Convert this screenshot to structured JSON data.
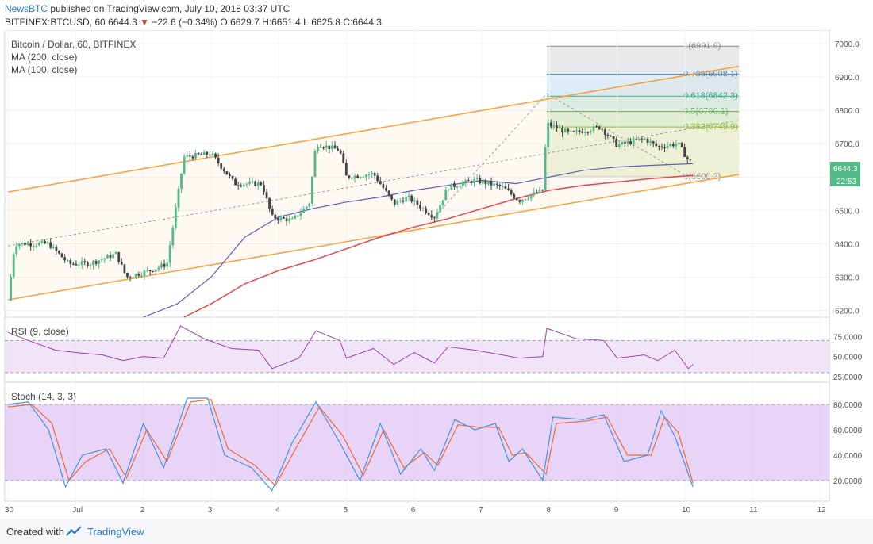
{
  "header": {
    "brand": "NewsBTC",
    "publish_text": " published on TradingView.com, July 10, 2018 03:37 UTC",
    "symbol": "BITFINEX:BTCUSD, 60",
    "last": "6644.3",
    "arrow": "▼",
    "change": "−22.6 (−0.34%)",
    "o_label": "O:",
    "o": "6629.7",
    "h_label": "H:",
    "h": "6651.4",
    "l_label": "L:",
    "l": "6625.8",
    "c_label": "C:",
    "c": "6644.3"
  },
  "footer": {
    "created_with": "Created with",
    "brand": "TradingView"
  },
  "colors": {
    "bull": "#53b987",
    "bear": "#444444",
    "ma200": "#e8454a",
    "ma100": "#5b5fb8",
    "channel": "#f7a13a",
    "rsi": "#9c3fb5",
    "stoch_k": "#4a90e2",
    "stoch_d": "#ef6a3a"
  },
  "chart_data": {
    "type": "candlestick",
    "symbol_title": "Bitcoin / Dollar, 60, BITFINEX",
    "indicators": [
      "MA (200, close)",
      "MA (100, close)"
    ],
    "x_ticks": [
      "30",
      "Jul",
      "2",
      "3",
      "4",
      "5",
      "6",
      "7",
      "8",
      "9",
      "10",
      "11",
      "12"
    ],
    "y_ticks": [
      6200,
      6300,
      6400,
      6500,
      6600,
      6700,
      6800,
      6900,
      7000
    ],
    "ylim": [
      6180,
      7040
    ],
    "last_price_label": "6644.3",
    "countdown_label": "22:53",
    "fibonacci": [
      {
        "level": "1",
        "price": 6991.9,
        "label": "1(6991.9)"
      },
      {
        "level": "0.786",
        "price": 6908.1,
        "label": "0.786(6908.1)"
      },
      {
        "level": "0.618",
        "price": 6842.3,
        "label": "0.618(6842.3)"
      },
      {
        "level": "0.5",
        "price": 6796.1,
        "label": "0.5(6796.1)"
      },
      {
        "level": "0.382",
        "price": 6749.9,
        "label": "0.382(6749.9)"
      },
      {
        "level": "0",
        "price": 6600.2,
        "label": "0(6600.2)"
      }
    ],
    "channel": {
      "upper": [
        {
          "x": 0.0,
          "y": 6555
        },
        {
          "x": 10.8,
          "y": 6932
        }
      ],
      "lower": [
        {
          "x": 0.0,
          "y": 6232
        },
        {
          "x": 10.8,
          "y": 6608
        }
      ]
    },
    "price_path": [
      {
        "x": 0.0,
        "y": 6230
      },
      {
        "x": 0.1,
        "y": 6400
      },
      {
        "x": 0.6,
        "y": 6400
      },
      {
        "x": 0.9,
        "y": 6340
      },
      {
        "x": 1.2,
        "y": 6340
      },
      {
        "x": 1.6,
        "y": 6370
      },
      {
        "x": 1.75,
        "y": 6300
      },
      {
        "x": 2.1,
        "y": 6320
      },
      {
        "x": 2.35,
        "y": 6340
      },
      {
        "x": 2.6,
        "y": 6660
      },
      {
        "x": 3.0,
        "y": 6670
      },
      {
        "x": 3.35,
        "y": 6580
      },
      {
        "x": 3.75,
        "y": 6580
      },
      {
        "x": 3.9,
        "y": 6480
      },
      {
        "x": 4.2,
        "y": 6470
      },
      {
        "x": 4.45,
        "y": 6520
      },
      {
        "x": 4.55,
        "y": 6700
      },
      {
        "x": 4.9,
        "y": 6680
      },
      {
        "x": 5.0,
        "y": 6600
      },
      {
        "x": 5.4,
        "y": 6610
      },
      {
        "x": 5.7,
        "y": 6520
      },
      {
        "x": 5.9,
        "y": 6540
      },
      {
        "x": 6.3,
        "y": 6480
      },
      {
        "x": 6.5,
        "y": 6570
      },
      {
        "x": 6.9,
        "y": 6590
      },
      {
        "x": 7.3,
        "y": 6570
      },
      {
        "x": 7.55,
        "y": 6530
      },
      {
        "x": 7.9,
        "y": 6560
      },
      {
        "x": 7.96,
        "y": 6760
      },
      {
        "x": 8.3,
        "y": 6730
      },
      {
        "x": 8.75,
        "y": 6750
      },
      {
        "x": 9.0,
        "y": 6695
      },
      {
        "x": 9.4,
        "y": 6715
      },
      {
        "x": 9.6,
        "y": 6690
      },
      {
        "x": 9.9,
        "y": 6700
      },
      {
        "x": 10.05,
        "y": 6650
      },
      {
        "x": 10.12,
        "y": 6644
      }
    ],
    "ma100": [
      {
        "x": 2.0,
        "y": 6180
      },
      {
        "x": 2.5,
        "y": 6220
      },
      {
        "x": 3.0,
        "y": 6300
      },
      {
        "x": 3.5,
        "y": 6420
      },
      {
        "x": 4.0,
        "y": 6480
      },
      {
        "x": 4.5,
        "y": 6505
      },
      {
        "x": 5.0,
        "y": 6525
      },
      {
        "x": 5.5,
        "y": 6540
      },
      {
        "x": 6.0,
        "y": 6560
      },
      {
        "x": 6.5,
        "y": 6575
      },
      {
        "x": 7.0,
        "y": 6590
      },
      {
        "x": 7.5,
        "y": 6580
      },
      {
        "x": 8.0,
        "y": 6600
      },
      {
        "x": 8.5,
        "y": 6620
      },
      {
        "x": 9.0,
        "y": 6630
      },
      {
        "x": 9.5,
        "y": 6635
      },
      {
        "x": 10.12,
        "y": 6640
      }
    ],
    "ma200": [
      {
        "x": 2.6,
        "y": 6180
      },
      {
        "x": 3.0,
        "y": 6220
      },
      {
        "x": 3.5,
        "y": 6280
      },
      {
        "x": 4.0,
        "y": 6320
      },
      {
        "x": 4.5,
        "y": 6350
      },
      {
        "x": 5.0,
        "y": 6385
      },
      {
        "x": 5.5,
        "y": 6420
      },
      {
        "x": 6.0,
        "y": 6450
      },
      {
        "x": 6.5,
        "y": 6475
      },
      {
        "x": 7.0,
        "y": 6505
      },
      {
        "x": 7.5,
        "y": 6535
      },
      {
        "x": 8.0,
        "y": 6560
      },
      {
        "x": 8.5,
        "y": 6575
      },
      {
        "x": 9.0,
        "y": 6585
      },
      {
        "x": 9.5,
        "y": 6595
      },
      {
        "x": 10.12,
        "y": 6605
      }
    ],
    "rsi": {
      "label": "RSI (9, close)",
      "y_ticks": [
        "75.0000",
        "50.0000",
        "25.0000"
      ],
      "tick_values": [
        75,
        50,
        25
      ],
      "band": [
        30,
        70
      ],
      "ylim": [
        20,
        95
      ],
      "values": [
        {
          "x": 0.0,
          "y": 80
        },
        {
          "x": 0.3,
          "y": 70
        },
        {
          "x": 0.7,
          "y": 58
        },
        {
          "x": 1.0,
          "y": 55
        },
        {
          "x": 1.4,
          "y": 52
        },
        {
          "x": 1.7,
          "y": 45
        },
        {
          "x": 2.0,
          "y": 50
        },
        {
          "x": 2.3,
          "y": 48
        },
        {
          "x": 2.55,
          "y": 88
        },
        {
          "x": 2.9,
          "y": 72
        },
        {
          "x": 3.3,
          "y": 60
        },
        {
          "x": 3.7,
          "y": 58
        },
        {
          "x": 3.9,
          "y": 35
        },
        {
          "x": 4.3,
          "y": 48
        },
        {
          "x": 4.55,
          "y": 82
        },
        {
          "x": 4.9,
          "y": 70
        },
        {
          "x": 5.0,
          "y": 48
        },
        {
          "x": 5.4,
          "y": 60
        },
        {
          "x": 5.7,
          "y": 40
        },
        {
          "x": 6.0,
          "y": 55
        },
        {
          "x": 6.3,
          "y": 42
        },
        {
          "x": 6.5,
          "y": 62
        },
        {
          "x": 6.9,
          "y": 58
        },
        {
          "x": 7.3,
          "y": 52
        },
        {
          "x": 7.55,
          "y": 48
        },
        {
          "x": 7.9,
          "y": 50
        },
        {
          "x": 7.96,
          "y": 85
        },
        {
          "x": 8.4,
          "y": 72
        },
        {
          "x": 8.8,
          "y": 70
        },
        {
          "x": 9.0,
          "y": 48
        },
        {
          "x": 9.4,
          "y": 52
        },
        {
          "x": 9.6,
          "y": 45
        },
        {
          "x": 9.85,
          "y": 58
        },
        {
          "x": 10.05,
          "y": 35
        },
        {
          "x": 10.12,
          "y": 40
        }
      ]
    },
    "stoch": {
      "label": "Stoch (14, 3, 3)",
      "y_ticks": [
        "80.0000",
        "60.0000",
        "40.0000",
        "20.0000"
      ],
      "tick_values": [
        80,
        60,
        40,
        20
      ],
      "band": [
        20,
        80
      ],
      "ylim": [
        5,
        95
      ],
      "k": [
        {
          "x": 0.0,
          "y": 80
        },
        {
          "x": 0.3,
          "y": 82
        },
        {
          "x": 0.6,
          "y": 60
        },
        {
          "x": 0.85,
          "y": 15
        },
        {
          "x": 1.1,
          "y": 40
        },
        {
          "x": 1.45,
          "y": 45
        },
        {
          "x": 1.7,
          "y": 18
        },
        {
          "x": 2.0,
          "y": 65
        },
        {
          "x": 2.3,
          "y": 30
        },
        {
          "x": 2.65,
          "y": 85
        },
        {
          "x": 2.95,
          "y": 85
        },
        {
          "x": 3.2,
          "y": 40
        },
        {
          "x": 3.6,
          "y": 30
        },
        {
          "x": 3.9,
          "y": 12
        },
        {
          "x": 4.2,
          "y": 50
        },
        {
          "x": 4.55,
          "y": 82
        },
        {
          "x": 4.9,
          "y": 50
        },
        {
          "x": 5.2,
          "y": 20
        },
        {
          "x": 5.5,
          "y": 65
        },
        {
          "x": 5.8,
          "y": 25
        },
        {
          "x": 6.1,
          "y": 45
        },
        {
          "x": 6.3,
          "y": 28
        },
        {
          "x": 6.6,
          "y": 68
        },
        {
          "x": 6.9,
          "y": 60
        },
        {
          "x": 7.2,
          "y": 65
        },
        {
          "x": 7.4,
          "y": 35
        },
        {
          "x": 7.6,
          "y": 45
        },
        {
          "x": 7.9,
          "y": 20
        },
        {
          "x": 8.05,
          "y": 70
        },
        {
          "x": 8.5,
          "y": 68
        },
        {
          "x": 8.8,
          "y": 72
        },
        {
          "x": 9.1,
          "y": 35
        },
        {
          "x": 9.45,
          "y": 40
        },
        {
          "x": 9.65,
          "y": 75
        },
        {
          "x": 9.85,
          "y": 55
        },
        {
          "x": 10.12,
          "y": 15
        }
      ],
      "d": [
        {
          "x": 0.0,
          "y": 78
        },
        {
          "x": 0.35,
          "y": 80
        },
        {
          "x": 0.65,
          "y": 65
        },
        {
          "x": 0.9,
          "y": 20
        },
        {
          "x": 1.15,
          "y": 35
        },
        {
          "x": 1.5,
          "y": 45
        },
        {
          "x": 1.75,
          "y": 22
        },
        {
          "x": 2.05,
          "y": 60
        },
        {
          "x": 2.35,
          "y": 35
        },
        {
          "x": 2.7,
          "y": 82
        },
        {
          "x": 3.0,
          "y": 84
        },
        {
          "x": 3.25,
          "y": 45
        },
        {
          "x": 3.65,
          "y": 32
        },
        {
          "x": 3.95,
          "y": 16
        },
        {
          "x": 4.25,
          "y": 45
        },
        {
          "x": 4.6,
          "y": 78
        },
        {
          "x": 4.95,
          "y": 55
        },
        {
          "x": 5.25,
          "y": 24
        },
        {
          "x": 5.55,
          "y": 60
        },
        {
          "x": 5.85,
          "y": 30
        },
        {
          "x": 6.15,
          "y": 42
        },
        {
          "x": 6.35,
          "y": 32
        },
        {
          "x": 6.65,
          "y": 64
        },
        {
          "x": 6.95,
          "y": 62
        },
        {
          "x": 7.25,
          "y": 62
        },
        {
          "x": 7.45,
          "y": 40
        },
        {
          "x": 7.65,
          "y": 42
        },
        {
          "x": 7.95,
          "y": 25
        },
        {
          "x": 8.1,
          "y": 65
        },
        {
          "x": 8.55,
          "y": 67
        },
        {
          "x": 8.85,
          "y": 70
        },
        {
          "x": 9.15,
          "y": 40
        },
        {
          "x": 9.5,
          "y": 40
        },
        {
          "x": 9.7,
          "y": 70
        },
        {
          "x": 9.9,
          "y": 58
        },
        {
          "x": 10.12,
          "y": 18
        }
      ]
    }
  }
}
